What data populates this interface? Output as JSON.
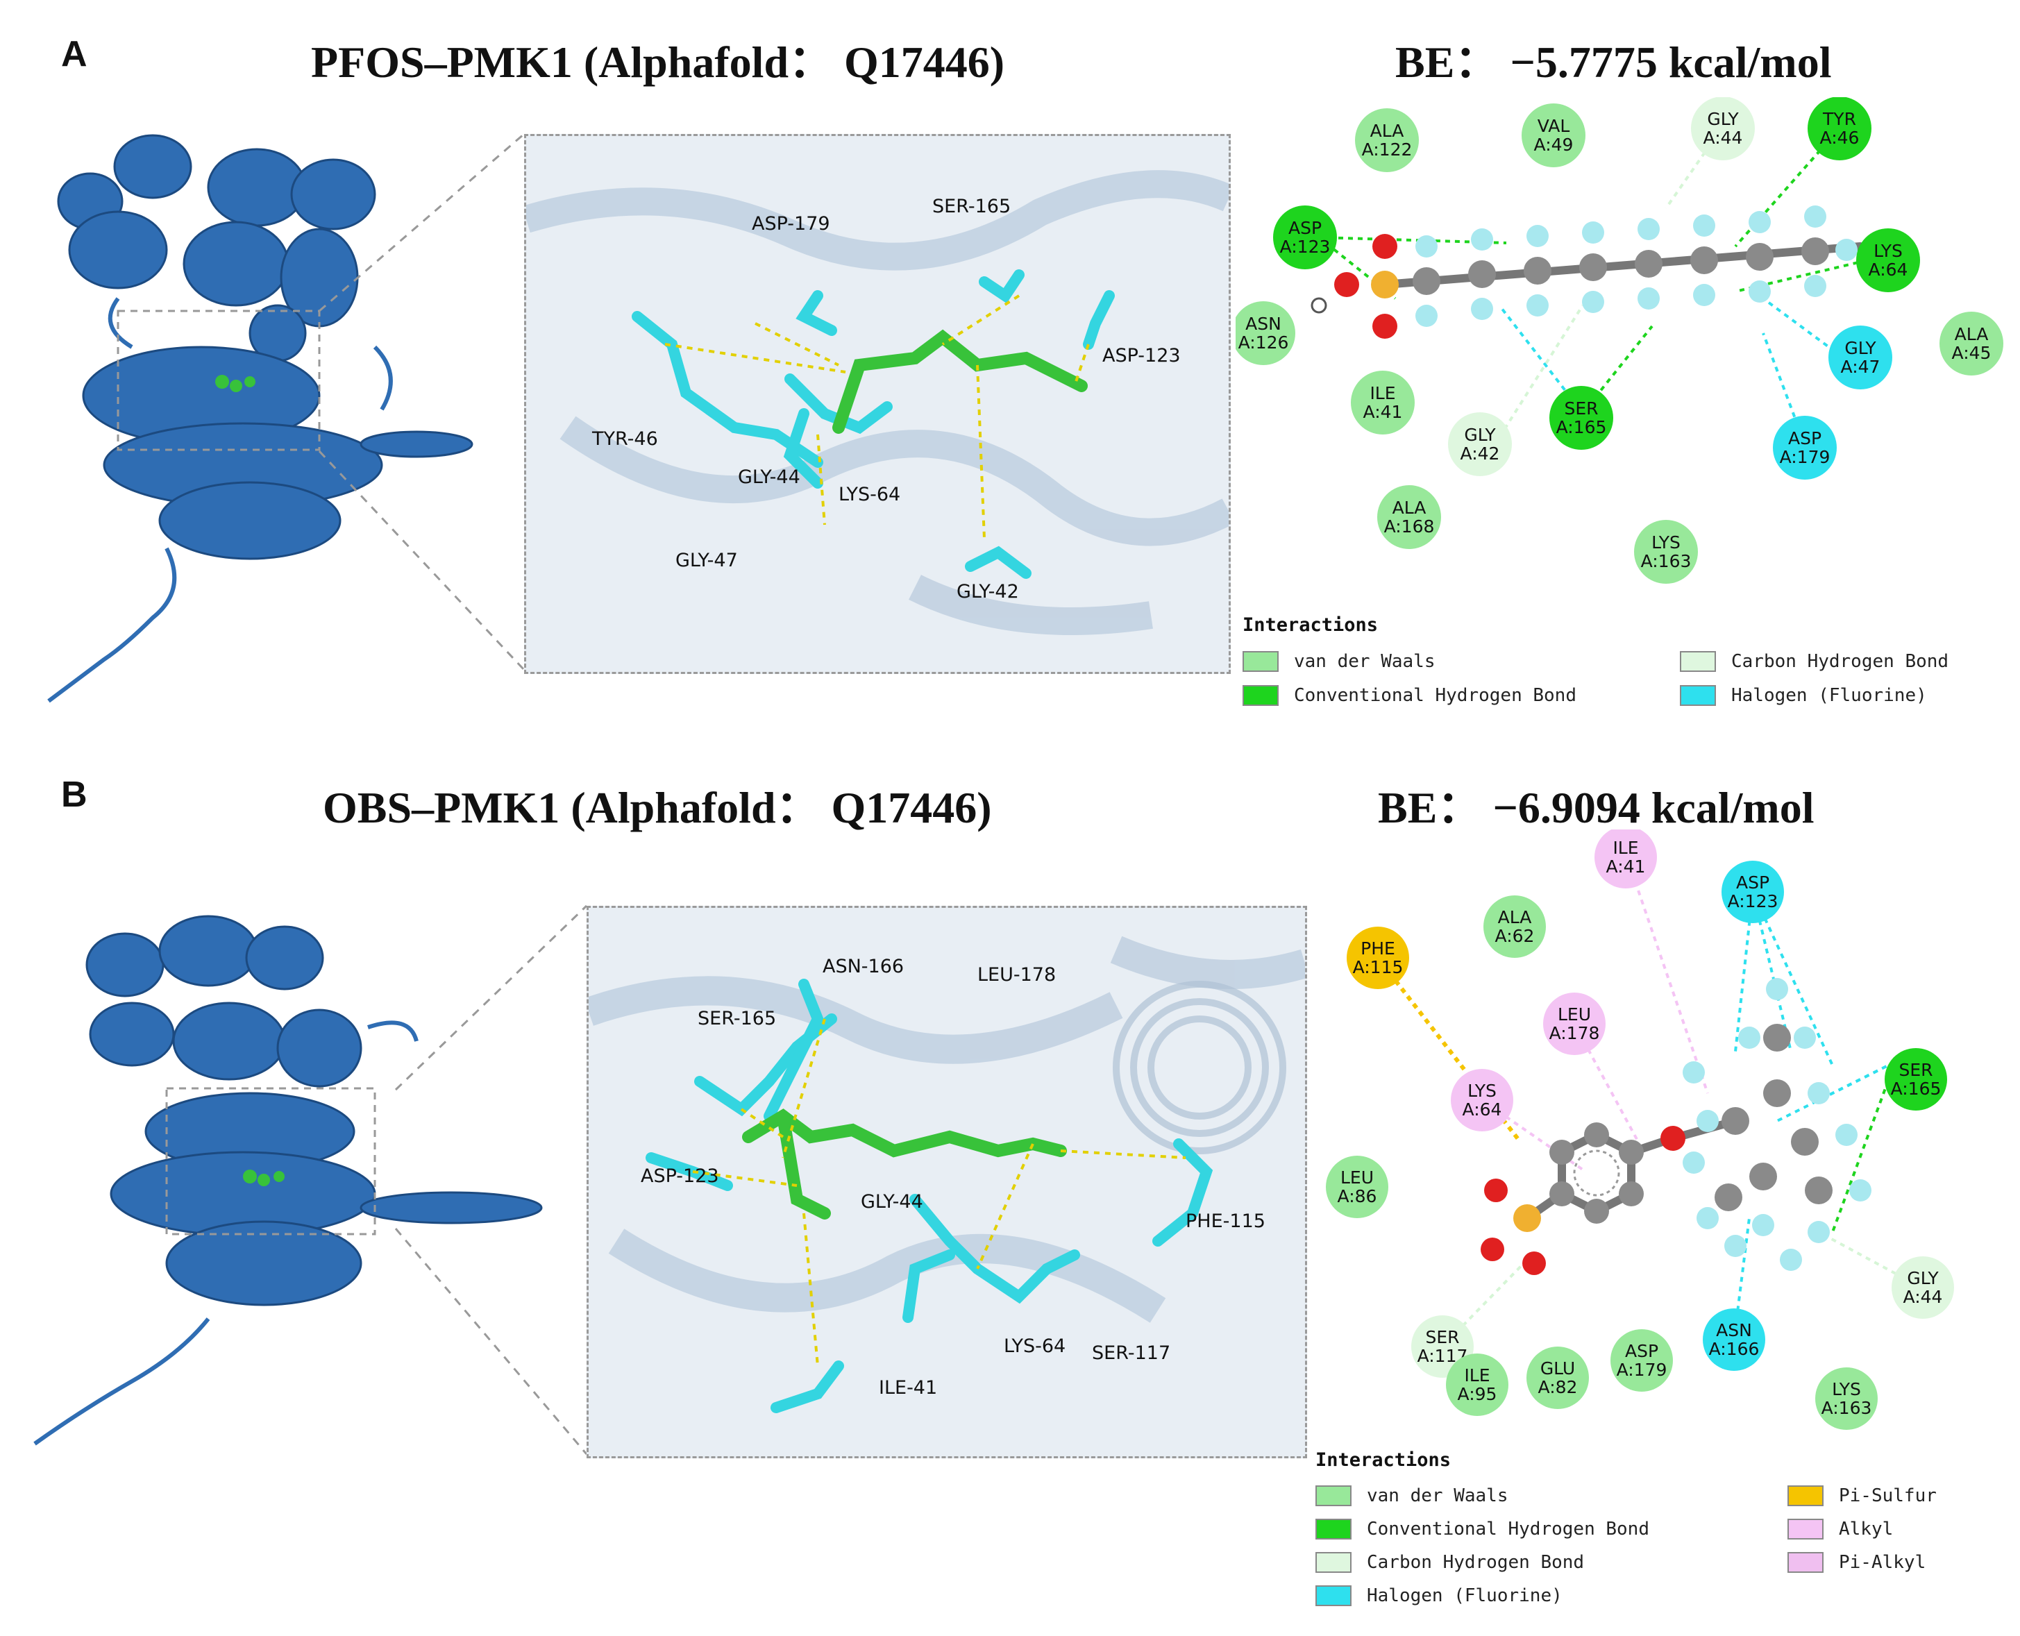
{
  "panel_a": {
    "letter": "A",
    "title": "PFOS–PMK1 (Alphafold： Q17446)",
    "binding_energy": "BE： −5.7775 kcal/mol",
    "zoom_labels": [
      "ASP-179",
      "SER-165",
      "ASP-123",
      "TYR-46",
      "GLY-44",
      "LYS-64",
      "GLY-47",
      "GLY-42"
    ],
    "residues": [
      {
        "name": "ALA",
        "id": "A:122",
        "type": "vdw"
      },
      {
        "name": "VAL",
        "id": "A:49",
        "type": "vdw"
      },
      {
        "name": "GLY",
        "id": "A:44",
        "type": "carbon_hbond"
      },
      {
        "name": "TYR",
        "id": "A:46",
        "type": "conv_hbond"
      },
      {
        "name": "ASP",
        "id": "A:123",
        "type": "conv_hbond"
      },
      {
        "name": "LYS",
        "id": "A:64",
        "type": "conv_hbond"
      },
      {
        "name": "ASN",
        "id": "A:126",
        "type": "vdw"
      },
      {
        "name": "GLY",
        "id": "A:47",
        "type": "halogen"
      },
      {
        "name": "ALA",
        "id": "A:45",
        "type": "vdw"
      },
      {
        "name": "ILE",
        "id": "A:41",
        "type": "vdw"
      },
      {
        "name": "SER",
        "id": "A:165",
        "type": "conv_hbond"
      },
      {
        "name": "ASP",
        "id": "A:179",
        "type": "halogen"
      },
      {
        "name": "GLY",
        "id": "A:42",
        "type": "carbon_hbond"
      },
      {
        "name": "ALA",
        "id": "A:168",
        "type": "vdw"
      },
      {
        "name": "LYS",
        "id": "A:163",
        "type": "vdw"
      }
    ],
    "legend": {
      "title": "Interactions",
      "items": [
        {
          "label": "van der Waals",
          "color": "#98e89a"
        },
        {
          "label": "Carbon Hydrogen Bond",
          "color": "#dff7df"
        },
        {
          "label": "Conventional Hydrogen Bond",
          "color": "#1ed41e"
        },
        {
          "label": "Halogen (Fluorine)",
          "color": "#2ee0ee"
        }
      ]
    }
  },
  "panel_b": {
    "letter": "B",
    "title": "OBS–PMK1 (Alphafold： Q17446)",
    "binding_energy": "BE： −6.9094 kcal/mol",
    "zoom_labels": [
      "ASN-166",
      "LEU-178",
      "SER-165",
      "ASP-123",
      "GLY-44",
      "PHE-115",
      "LYS-64",
      "SER-117",
      "ILE-41"
    ],
    "residues": [
      {
        "name": "ILE",
        "id": "A:41",
        "type": "alkyl"
      },
      {
        "name": "ASP",
        "id": "A:123",
        "type": "halogen"
      },
      {
        "name": "ALA",
        "id": "A:62",
        "type": "vdw"
      },
      {
        "name": "PHE",
        "id": "A:115",
        "type": "pi_sulfur"
      },
      {
        "name": "LEU",
        "id": "A:178",
        "type": "alkyl"
      },
      {
        "name": "LYS",
        "id": "A:64",
        "type": "alkyl"
      },
      {
        "name": "SER",
        "id": "A:165",
        "type": "conv_hbond"
      },
      {
        "name": "LEU",
        "id": "A:86",
        "type": "vdw"
      },
      {
        "name": "GLY",
        "id": "A:44",
        "type": "carbon_hbond"
      },
      {
        "name": "ASN",
        "id": "A:166",
        "type": "halogen"
      },
      {
        "name": "SER",
        "id": "A:117",
        "type": "carbon_hbond"
      },
      {
        "name": "ASP",
        "id": "A:179",
        "type": "vdw"
      },
      {
        "name": "ILE",
        "id": "A:95",
        "type": "vdw"
      },
      {
        "name": "GLU",
        "id": "A:82",
        "type": "vdw"
      },
      {
        "name": "LYS",
        "id": "A:163",
        "type": "vdw"
      }
    ],
    "legend": {
      "title": "Interactions",
      "items": [
        {
          "label": "van der Waals",
          "color": "#98e89a"
        },
        {
          "label": "Pi-Sulfur",
          "color": "#f5c400"
        },
        {
          "label": "Conventional Hydrogen Bond",
          "color": "#1ed41e"
        },
        {
          "label": "Alkyl",
          "color": "#f4c4f4"
        },
        {
          "label": "Carbon Hydrogen Bond",
          "color": "#dff7df"
        },
        {
          "label": "Pi-Alkyl",
          "color": "#f0bff0"
        },
        {
          "label": "Halogen (Fluorine)",
          "color": "#2ee0ee"
        }
      ]
    }
  },
  "colors": {
    "vdw": "#98e89a",
    "carbon_hbond": "#dff7df",
    "conv_hbond": "#1ed41e",
    "halogen": "#2ee0ee",
    "pi_sulfur": "#f5c400",
    "alkyl": "#f4c4f4",
    "protein": "#2f6db3",
    "ligand_carbon": "#38c23a",
    "residue_stick": "#34d5e0",
    "atom_carbon": "#8a8a8a",
    "atom_fluorine": "#a8e8ef",
    "atom_oxygen": "#e02020",
    "atom_sulfur": "#f0b030"
  }
}
